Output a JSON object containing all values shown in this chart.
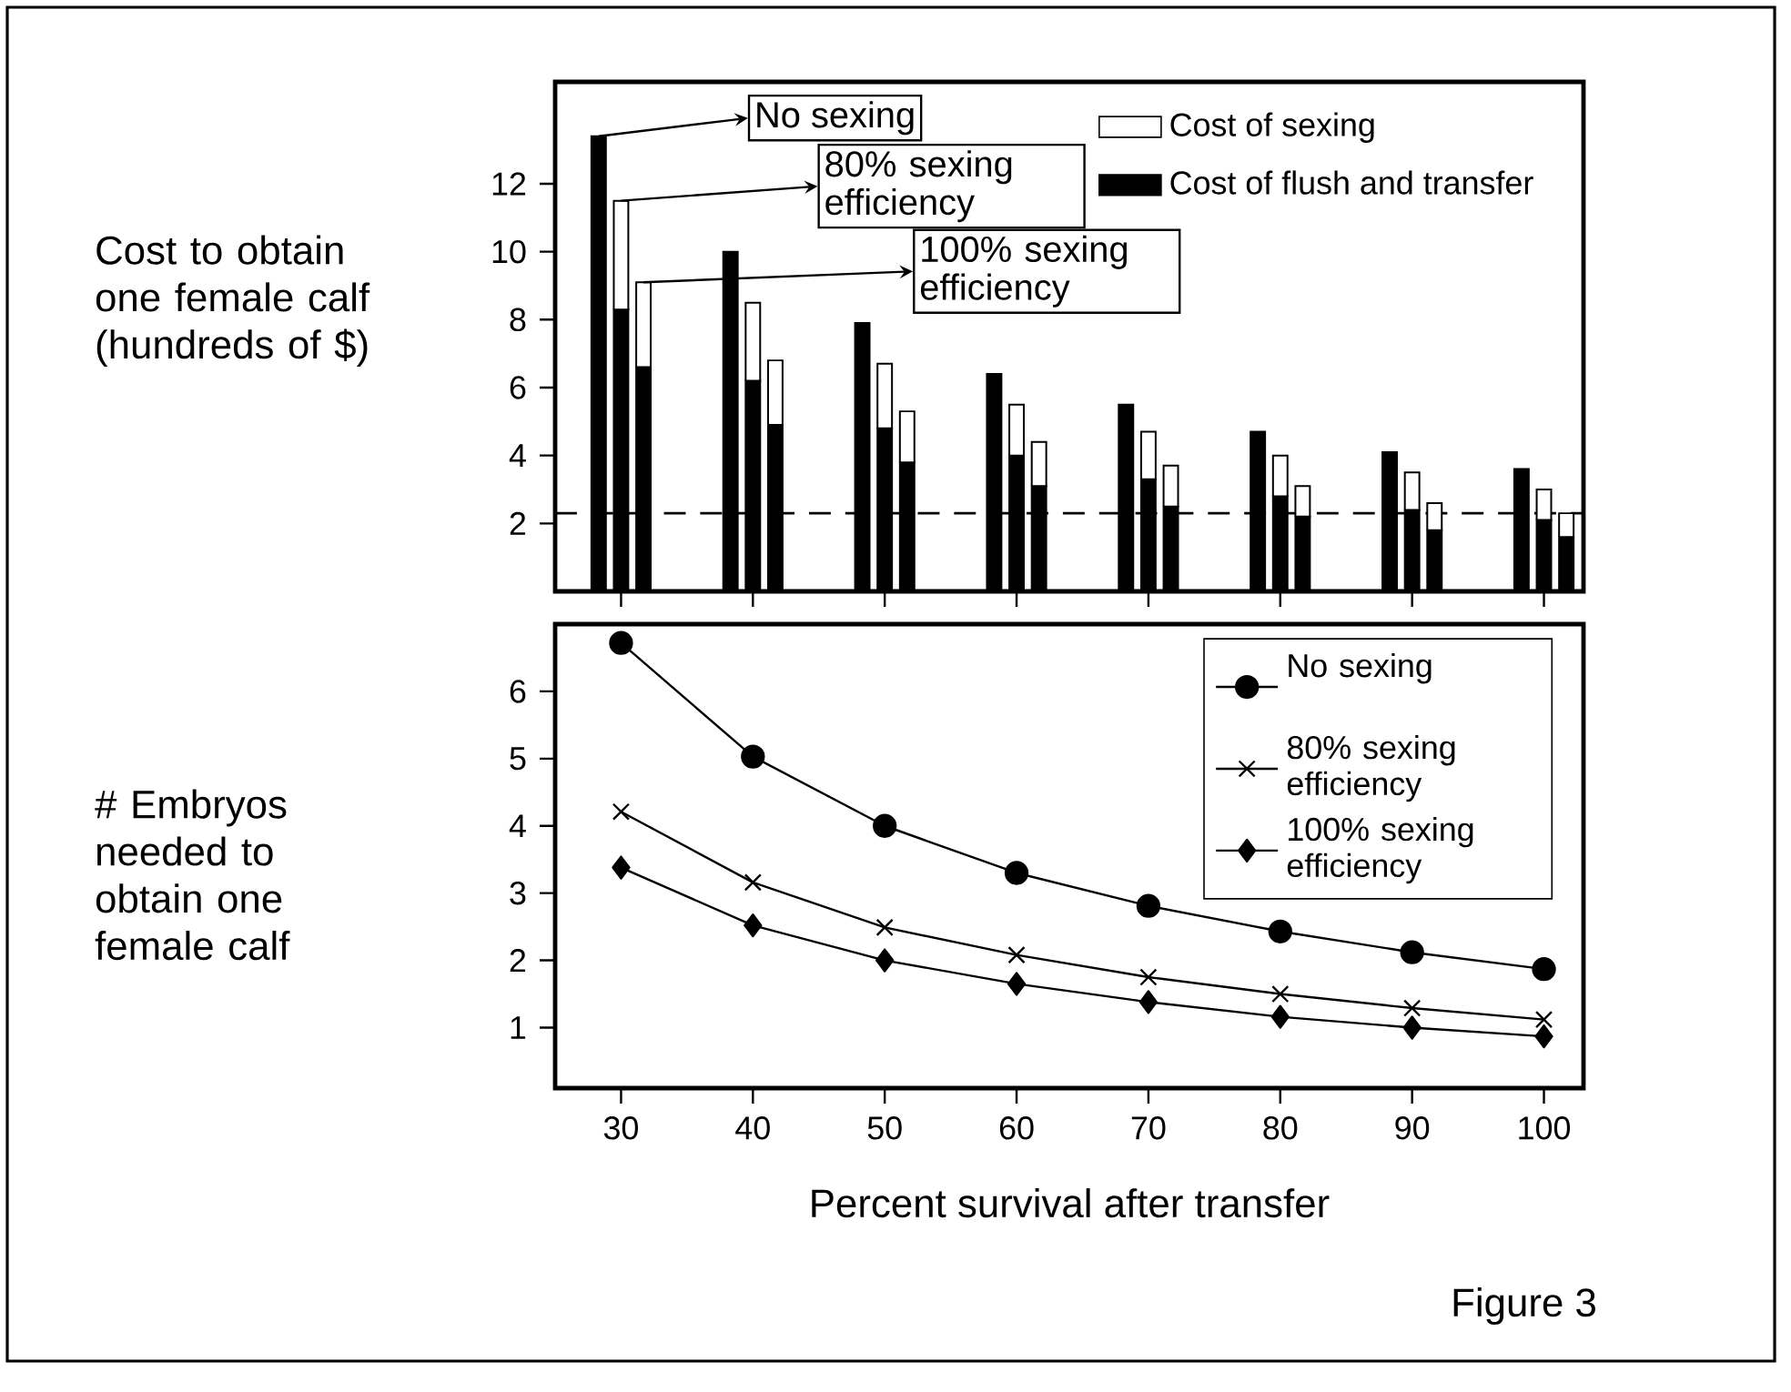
{
  "chart_data": [
    {
      "type": "bar",
      "ylabel": "Cost to obtain one female calf (hundreds of $)",
      "xlim": [
        25,
        103
      ],
      "xticks": [
        {
          "value": 30,
          "label": null
        },
        {
          "value": 40,
          "label": null
        },
        {
          "value": 50,
          "label": null
        },
        {
          "value": 60,
          "label": null
        },
        {
          "value": 70,
          "label": null
        },
        {
          "value": 80,
          "label": null
        },
        {
          "value": 90,
          "label": null
        },
        {
          "value": 100,
          "label": null
        }
      ],
      "ylim": [
        0,
        15
      ],
      "yticks": [
        2,
        4,
        6,
        8,
        10,
        12
      ],
      "tick_labels": "y",
      "legend": "top right",
      "series": [
        {
          "name": "Cost of flush and transfer",
          "color": "#000000",
          "x": [
            28.3,
            30,
            31.7,
            38.3,
            40,
            41.7,
            48.3,
            50,
            51.7,
            58.3,
            60,
            61.7,
            68.3,
            70,
            71.7,
            78.3,
            80,
            81.7,
            88.3,
            90,
            91.7,
            98.3,
            100,
            101.7
          ],
          "values": [
            13.4,
            8.3,
            6.6,
            10.0,
            6.2,
            4.9,
            7.9,
            4.8,
            3.8,
            6.4,
            4.0,
            3.1,
            5.5,
            3.3,
            2.5,
            4.7,
            2.8,
            2.2,
            4.1,
            2.4,
            1.8,
            3.6,
            2.1,
            1.6
          ]
        },
        {
          "name": "Cost of sexing",
          "color": "#ffffff",
          "x": [
            30,
            31.7,
            40,
            41.7,
            50,
            51.7,
            60,
            61.7,
            70,
            71.7,
            80,
            81.7,
            90,
            91.7,
            100,
            101.7
          ],
          "base": [
            8.3,
            6.6,
            6.2,
            4.9,
            4.8,
            3.8,
            4.0,
            3.1,
            3.3,
            2.5,
            2.8,
            2.2,
            2.4,
            1.8,
            2.1,
            1.6
          ],
          "values": [
            3.2,
            2.5,
            2.3,
            1.9,
            1.9,
            1.5,
            1.5,
            1.3,
            1.4,
            1.2,
            1.2,
            0.9,
            1.1,
            0.8,
            0.9,
            0.7
          ]
        }
      ],
      "ref_lines": [
        {
          "axis": "y",
          "value": 2.3,
          "line_style": "dashed"
        }
      ],
      "annotations": [
        {
          "text": "No sexing",
          "x": 28.3,
          "y": 13.4
        },
        {
          "text": "80% sexing efficiency",
          "x": 30,
          "y": 11.5
        },
        {
          "text": "100% sexing efficiency",
          "x": 31.7,
          "y": 9.1
        }
      ]
    },
    {
      "type": "line",
      "ylabel": "# Embryos needed to obtain one female calf",
      "xlabel": "Percent survival after transfer",
      "x": [
        30,
        40,
        50,
        60,
        70,
        80,
        90,
        100
      ],
      "xlim": [
        25,
        103
      ],
      "xticks": [
        30,
        40,
        50,
        60,
        70,
        80,
        90,
        100
      ],
      "ylim": [
        0.1,
        7
      ],
      "yticks": [
        1,
        2,
        3,
        4,
        5,
        6
      ],
      "legend": "top right",
      "line_style": "solid",
      "series": [
        {
          "name": "No sexing",
          "color": "#000000",
          "marker": "circle",
          "values": [
            6.72,
            5.03,
            4.0,
            3.3,
            2.81,
            2.43,
            2.12,
            1.87
          ]
        },
        {
          "name": "80% sexing efficiency",
          "color": "#000000",
          "marker": "cross",
          "values": [
            4.21,
            3.16,
            2.49,
            2.08,
            1.75,
            1.5,
            1.29,
            1.12
          ]
        },
        {
          "name": "100% sexing efficiency",
          "color": "#000000",
          "marker": "diamond",
          "values": [
            3.38,
            2.52,
            2.0,
            1.65,
            1.38,
            1.16,
            1.0,
            0.87
          ]
        }
      ],
      "annotations": [
        "Figure 3"
      ]
    }
  ]
}
